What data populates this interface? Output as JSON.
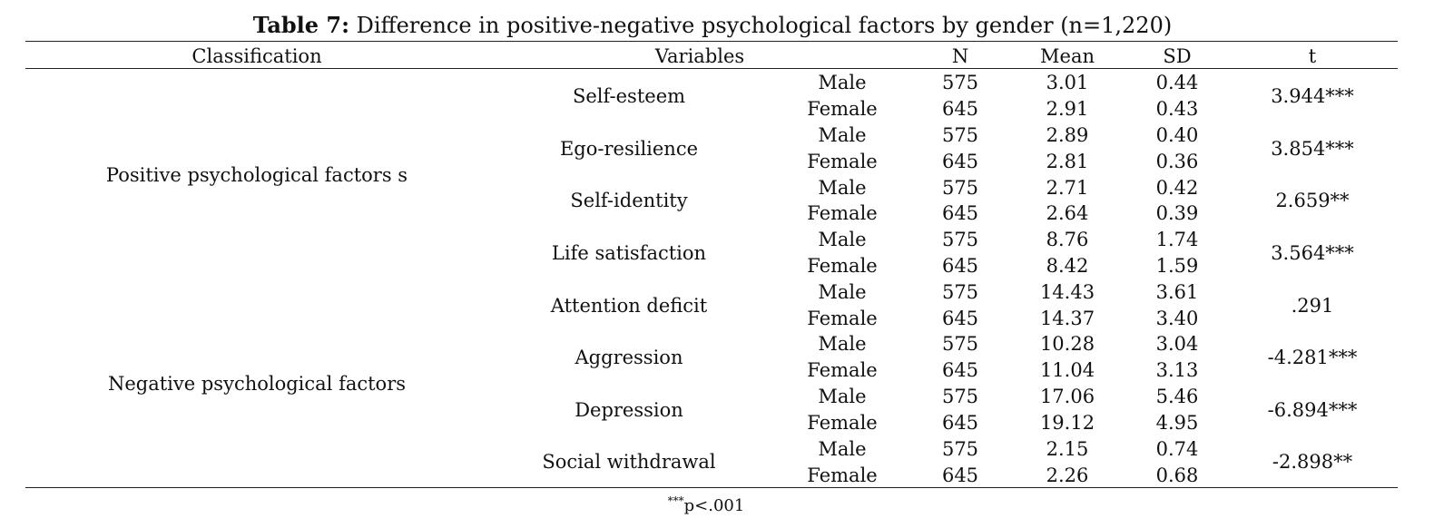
{
  "caption": {
    "label": "Table 7:",
    "text": "Difference in positive-negative psychological factors by gender (n=1,220)"
  },
  "headers": {
    "classification": "Classification",
    "variables": "Variables",
    "n": "N",
    "mean": "Mean",
    "sd": "SD",
    "t": "t"
  },
  "groups": [
    {
      "label": "Positive psychological factors s"
    },
    {
      "label": "Negative psychological factors"
    }
  ],
  "variables": [
    {
      "name": "Self-esteem",
      "t": "3.944***",
      "rows": [
        {
          "gender": "Male",
          "n": "575",
          "mean": "3.01",
          "sd": "0.44"
        },
        {
          "gender": "Female",
          "n": "645",
          "mean": "2.91",
          "sd": "0.43"
        }
      ]
    },
    {
      "name": "Ego-resilience",
      "t": "3.854***",
      "rows": [
        {
          "gender": "Male",
          "n": "575",
          "mean": "2.89",
          "sd": "0.40"
        },
        {
          "gender": "Female",
          "n": "645",
          "mean": "2.81",
          "sd": "0.36"
        }
      ]
    },
    {
      "name": "Self-identity",
      "t": "2.659**",
      "rows": [
        {
          "gender": "Male",
          "n": "575",
          "mean": "2.71",
          "sd": "0.42"
        },
        {
          "gender": "Female",
          "n": "645",
          "mean": "2.64",
          "sd": "0.39"
        }
      ]
    },
    {
      "name": "Life satisfaction",
      "t": "3.564***",
      "rows": [
        {
          "gender": "Male",
          "n": "575",
          "mean": "8.76",
          "sd": "1.74"
        },
        {
          "gender": "Female",
          "n": "645",
          "mean": "8.42",
          "sd": "1.59"
        }
      ]
    },
    {
      "name": "Attention deficit",
      "t": ".291",
      "rows": [
        {
          "gender": "Male",
          "n": "575",
          "mean": "14.43",
          "sd": "3.61"
        },
        {
          "gender": "Female",
          "n": "645",
          "mean": "14.37",
          "sd": "3.40"
        }
      ]
    },
    {
      "name": "Aggression",
      "t": "-4.281***",
      "rows": [
        {
          "gender": "Male",
          "n": "575",
          "mean": "10.28",
          "sd": "3.04"
        },
        {
          "gender": "Female",
          "n": "645",
          "mean": "11.04",
          "sd": "3.13"
        }
      ]
    },
    {
      "name": "Depression",
      "t": "-6.894***",
      "rows": [
        {
          "gender": "Male",
          "n": "575",
          "mean": "17.06",
          "sd": "5.46"
        },
        {
          "gender": "Female",
          "n": "645",
          "mean": "19.12",
          "sd": "4.95"
        }
      ]
    },
    {
      "name": "Social withdrawal",
      "t": "-2.898**",
      "rows": [
        {
          "gender": "Male",
          "n": "575",
          "mean": "2.15",
          "sd": "0.74"
        },
        {
          "gender": "Female",
          "n": "645",
          "mean": "2.26",
          "sd": "0.68"
        }
      ]
    }
  ],
  "footnote": {
    "stars": "***",
    "text": "p<.001"
  }
}
